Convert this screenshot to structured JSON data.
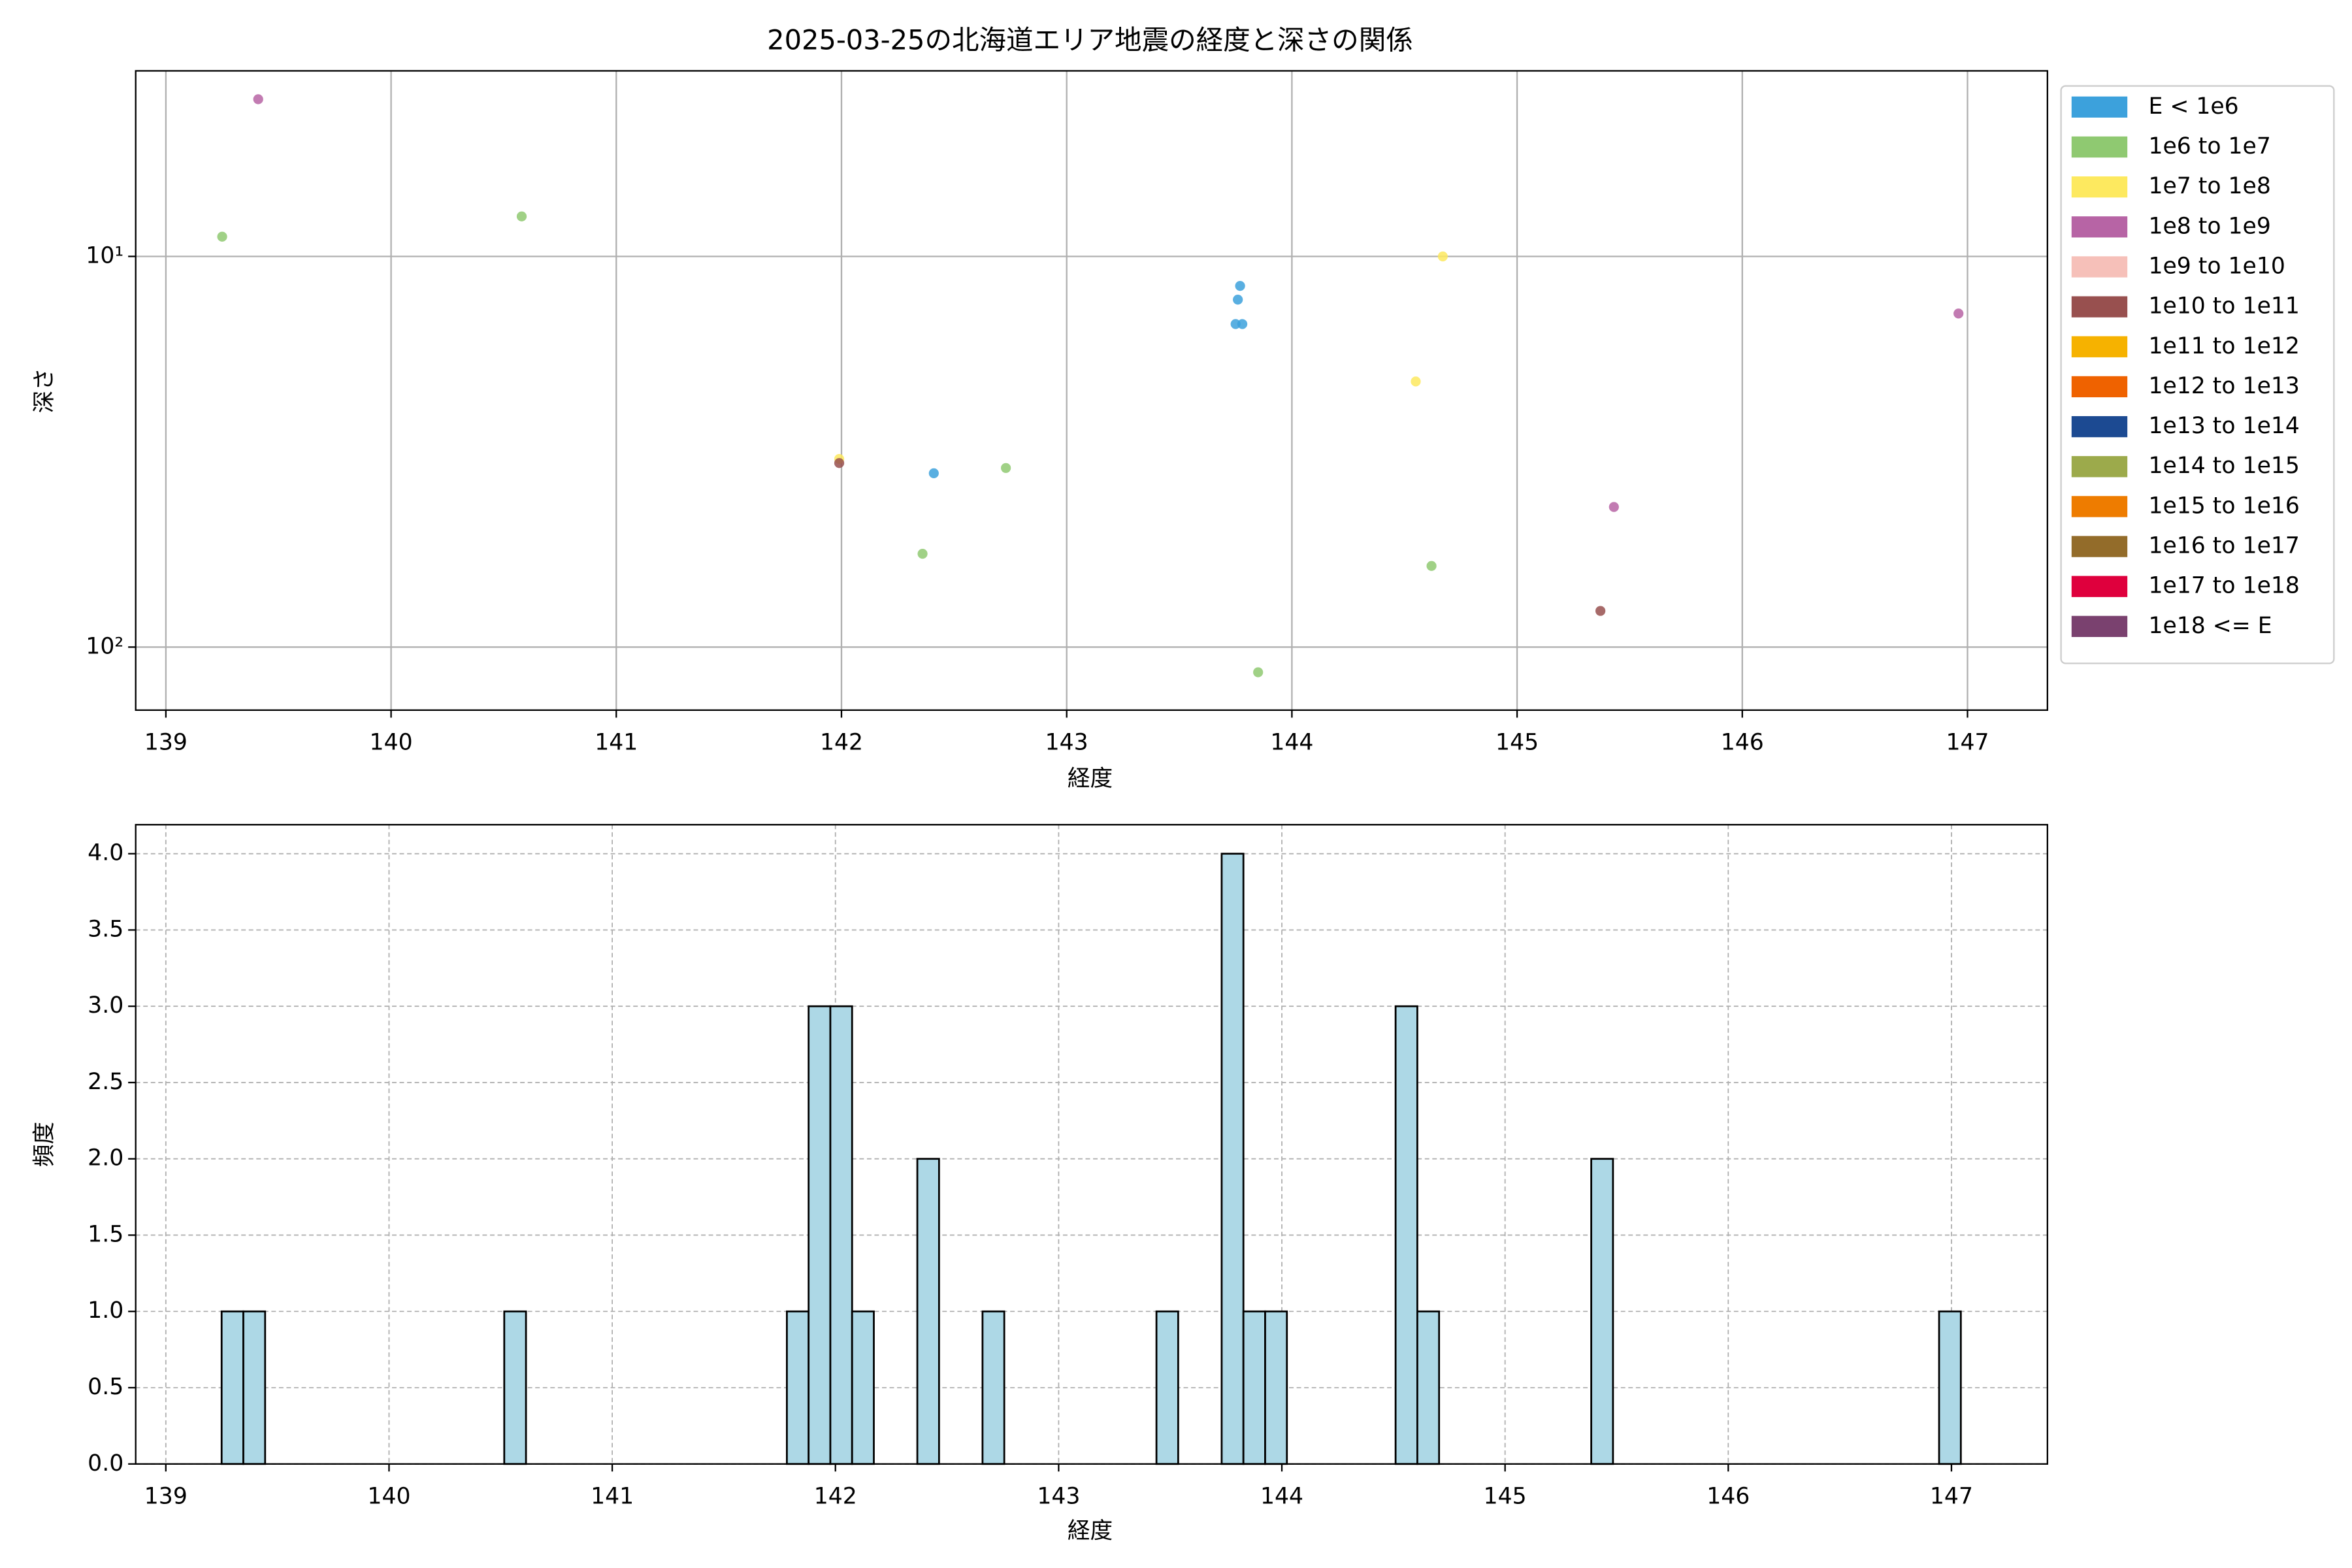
{
  "chart_data": [
    {
      "type": "scatter",
      "title": "2025-03-25の北海道エリア地震の経度と深さの関係",
      "xlabel": "経度",
      "ylabel": "深さ",
      "xlim": [
        138.866,
        147.355
      ],
      "ylim": [
        3.35,
        145
      ],
      "yscale": "log",
      "yinverted": true,
      "xticks": [
        139,
        140,
        141,
        142,
        143,
        144,
        145,
        146,
        147
      ],
      "yticks": [
        {
          "value": 10,
          "label": "10¹"
        },
        {
          "value": 100,
          "label": "10²"
        }
      ],
      "grid": true,
      "legend": "outside right",
      "series": [
        {
          "name": "E < 1e6",
          "color": "#3ca1dc",
          "x": [
            143.77,
            143.76,
            143.75,
            143.78,
            142.41
          ],
          "values": [
            11.9,
            12.9,
            14.9,
            14.9,
            35.9
          ]
        },
        {
          "name": "1e6 to 1e7",
          "color": "#8fc971",
          "x": [
            139.25,
            140.58,
            142.73,
            142.36,
            144.62,
            143.85
          ],
          "values": [
            8.9,
            7.9,
            34.8,
            57.7,
            62.0,
            116
          ]
        },
        {
          "name": "1e7 to 1e8",
          "color": "#fde95f",
          "x": [
            144.67,
            144.55,
            141.99
          ],
          "values": [
            10,
            20.9,
            33.0
          ]
        },
        {
          "name": "1e8 to 1e9",
          "color": "#b764a5",
          "x": [
            139.41,
            146.96,
            145.43
          ],
          "values": [
            3.96,
            14.0,
            43.8
          ]
        },
        {
          "name": "1e9 to 1e10",
          "color": "#f6c0b9",
          "x": [],
          "values": []
        },
        {
          "name": "1e10 to 1e11",
          "color": "#98504f",
          "x": [
            141.99,
            145.37
          ],
          "values": [
            33.8,
            80.8
          ]
        },
        {
          "name": "1e11 to 1e12",
          "color": "#f6b200",
          "x": [],
          "values": []
        },
        {
          "name": "1e12 to 1e13",
          "color": "#ef6200",
          "x": [],
          "values": []
        },
        {
          "name": "1e13 to 1e14",
          "color": "#1c4a92",
          "x": [],
          "values": []
        },
        {
          "name": "1e14 to 1e15",
          "color": "#9caa4b",
          "x": [],
          "values": []
        },
        {
          "name": "1e15 to 1e16",
          "color": "#ee7c00",
          "x": [],
          "values": []
        },
        {
          "name": "1e16 to 1e17",
          "color": "#936c2a",
          "x": [],
          "values": []
        },
        {
          "name": "1e17 to 1e18",
          "color": "#df003d",
          "x": [],
          "values": []
        },
        {
          "name": "1e18 <= E",
          "color": "#7a416f",
          "x": [],
          "values": []
        }
      ]
    },
    {
      "type": "histogram",
      "xlabel": "経度",
      "ylabel": "頻度",
      "color": "#add8e6",
      "edgecolor": "#000000",
      "xlim": [
        138.865,
        147.43
      ],
      "ylim": [
        0,
        4.19
      ],
      "xticks": [
        139,
        140,
        141,
        142,
        143,
        144,
        145,
        146,
        147
      ],
      "yticks": [
        {
          "value": 0,
          "label": "0.0"
        },
        0.5,
        {
          "value": 1,
          "label": "1.0"
        },
        1.5,
        {
          "value": 2,
          "label": "2.0"
        },
        2.5,
        {
          "value": 3,
          "label": "3.0"
        },
        3.5,
        {
          "value": 4,
          "label": "4.0"
        }
      ],
      "grid": true,
      "grid_style": "dashed",
      "bins": [
        139.25,
        139.3474,
        139.4448,
        139.5422,
        139.6396,
        139.737,
        139.8344,
        139.9318,
        140.0292,
        140.1266,
        140.224,
        140.3214,
        140.4188,
        140.5162,
        140.6136,
        140.711,
        140.8084,
        140.9058,
        141.0032,
        141.1006,
        141.198,
        141.2954,
        141.3928,
        141.4902,
        141.5876,
        141.685,
        141.7824,
        141.8798,
        141.9772,
        142.0746,
        142.172,
        142.2694,
        142.3668,
        142.4642,
        142.5616,
        142.659,
        142.7564,
        142.8538,
        142.9512,
        143.0486,
        143.146,
        143.2434,
        143.3408,
        143.4382,
        143.5356,
        143.633,
        143.7304,
        143.8278,
        143.9252,
        144.0226,
        144.12,
        144.2174,
        144.3148,
        144.4122,
        144.5096,
        144.607,
        144.7044,
        144.8018,
        144.8992,
        144.9966,
        145.094,
        145.1914,
        145.2888,
        145.3862,
        145.4836,
        145.581,
        145.6784,
        145.7758,
        145.8732,
        145.9706,
        146.068,
        146.1654,
        146.2628,
        146.3602,
        146.4576,
        146.555,
        146.6524,
        146.7498,
        146.8472,
        146.9446,
        147.042
      ],
      "counts": [
        1,
        1,
        0,
        0,
        0,
        0,
        0,
        0,
        0,
        0,
        0,
        0,
        0,
        1,
        0,
        0,
        0,
        0,
        0,
        0,
        0,
        0,
        0,
        0,
        0,
        0,
        1,
        3,
        3,
        1,
        0,
        0,
        2,
        0,
        0,
        1,
        0,
        0,
        0,
        0,
        0,
        0,
        0,
        1,
        0,
        0,
        4,
        1,
        1,
        0,
        0,
        0,
        0,
        0,
        3,
        1,
        0,
        0,
        0,
        0,
        0,
        0,
        0,
        2,
        0,
        0,
        0,
        0,
        0,
        0,
        0,
        0,
        0,
        0,
        0,
        0,
        0,
        0,
        0,
        1
      ]
    }
  ]
}
